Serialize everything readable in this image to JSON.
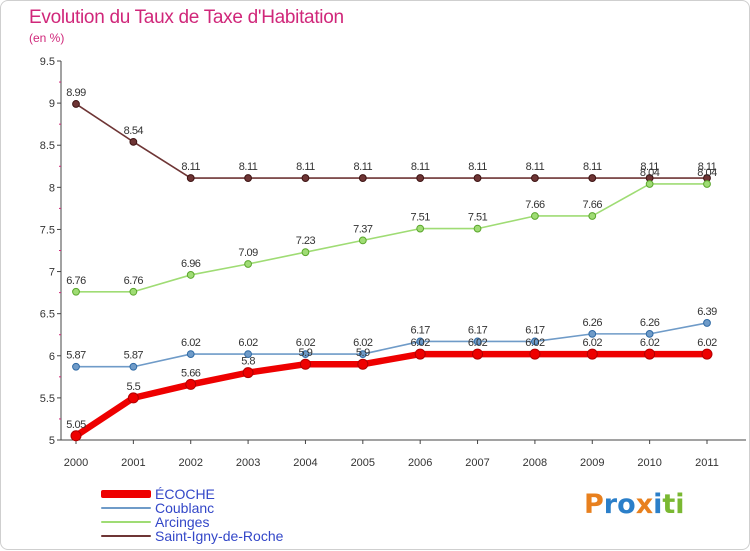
{
  "header": {
    "title": "Evolution du Taux de Taxe d'Habitation",
    "unit": "(en %)"
  },
  "logo": {
    "letters": [
      {
        "char": "P",
        "color": "#e8801e"
      },
      {
        "char": "r",
        "color": "#2b7fc9"
      },
      {
        "char": "o",
        "color": "#2b7fc9"
      },
      {
        "char": "x",
        "color": "#e8801e"
      },
      {
        "char": "i",
        "color": "#2b7fc9"
      },
      {
        "char": "t",
        "color": "#7ab832"
      },
      {
        "char": "i",
        "color": "#7ab832"
      }
    ]
  },
  "chart_data": {
    "type": "line",
    "title": "Evolution du Taux de Taxe d'Habitation",
    "subtitle": "(en %)",
    "xlabel": "",
    "ylabel": "",
    "x": [
      "2000",
      "2001",
      "2002",
      "2003",
      "2004",
      "2005",
      "2006",
      "2007",
      "2008",
      "2009",
      "2010",
      "2011"
    ],
    "ylim": [
      5,
      9.5
    ],
    "yticks": [
      "5",
      "5.5",
      "6",
      "6.5",
      "7",
      "7.5",
      "8",
      "8.5",
      "9",
      "9.5"
    ],
    "grid": false,
    "legend_position": "bottom-left",
    "series": [
      {
        "name": "ÉCOCHE",
        "color": "#ee0000",
        "values": [
          5.05,
          5.5,
          5.66,
          5.8,
          5.9,
          5.9,
          6.02,
          6.02,
          6.02,
          6.02,
          6.02,
          6.02
        ],
        "labels": [
          "5.05",
          "5.5",
          "5.66",
          "5.8",
          "5.9",
          "5.9",
          "6.02",
          "6.02",
          "6.02",
          "6.02",
          "6.02",
          "6.02"
        ]
      },
      {
        "name": "Coublanc",
        "color": "#6f9bc8",
        "values": [
          5.87,
          5.87,
          6.02,
          6.02,
          6.02,
          6.02,
          6.17,
          6.17,
          6.17,
          6.26,
          6.26,
          6.39
        ],
        "labels": [
          "5.87",
          "5.87",
          "6.02",
          "6.02",
          "6.02",
          "6.02",
          "6.17",
          "6.17",
          "6.17",
          "6.26",
          "6.26",
          "6.39"
        ]
      },
      {
        "name": "Arcinges",
        "color": "#9fdc74",
        "values": [
          6.76,
          6.76,
          6.96,
          7.09,
          7.23,
          7.37,
          7.51,
          7.51,
          7.66,
          7.66,
          8.04,
          8.04
        ],
        "labels": [
          "6.76",
          "6.76",
          "6.96",
          "7.09",
          "7.23",
          "7.37",
          "7.51",
          "7.51",
          "7.66",
          "7.66",
          "8.04",
          "8.04"
        ]
      },
      {
        "name": "Saint-Igny-de-Roche",
        "color": "#6e3535",
        "values": [
          8.99,
          8.54,
          8.11,
          8.11,
          8.11,
          8.11,
          8.11,
          8.11,
          8.11,
          8.11,
          8.11,
          8.11
        ],
        "labels": [
          "8.99",
          "8.54",
          "8.11",
          "8.11",
          "8.11",
          "8.11",
          "8.11",
          "8.11",
          "8.11",
          "8.11",
          "8.11",
          "8.11"
        ]
      }
    ]
  }
}
